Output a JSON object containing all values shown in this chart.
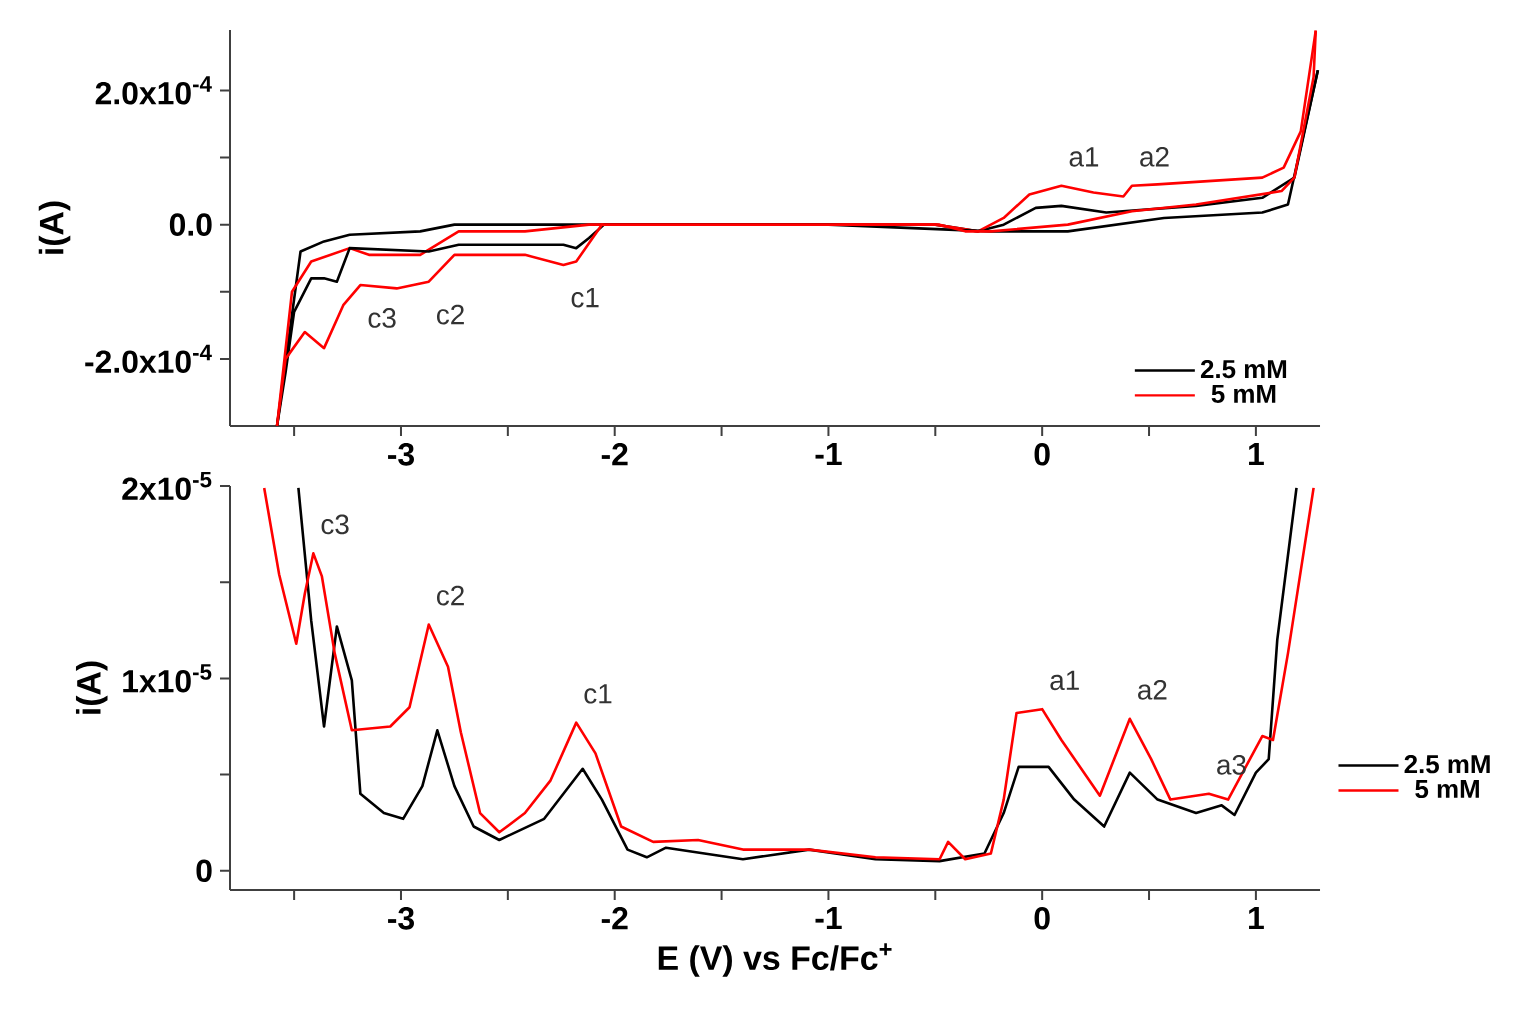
{
  "chart_data": [
    {
      "type": "line",
      "ylabel": "i(A)",
      "legend": "bottom right",
      "xlim": [
        -3.8,
        1.3
      ],
      "ylim": [
        -0.0003,
        0.00029
      ],
      "xticks": [
        {
          "value": -3.5,
          "label": null
        },
        -3,
        {
          "value": -2.5,
          "label": null
        },
        -2,
        {
          "value": -1.5,
          "label": null
        },
        -1,
        {
          "value": -0.5,
          "label": null
        },
        0,
        {
          "value": 0.5,
          "label": null
        },
        1
      ],
      "yticks": [
        {
          "value": -0.0002,
          "label": "-2.0x10$^{-4}$"
        },
        {
          "value": -0.0001,
          "label": null
        },
        {
          "value": 0,
          "label": "0.0"
        },
        {
          "value": 0.0001,
          "label": null
        },
        {
          "value": 0.0002,
          "label": "2.0x10$^{-4}$"
        }
      ],
      "series": [
        {
          "name": "2.5 mM",
          "color": "#000000",
          "x": [
            -3.58,
            -3.47,
            -3.36,
            -3.24,
            -2.91,
            -2.75,
            -2.12,
            -1.5,
            -1.0,
            -0.5,
            -0.3,
            -0.18,
            -0.03,
            0.09,
            0.3,
            0.72,
            1.03,
            1.18,
            1.29
          ],
          "values": [
            -0.0003,
            -4e-05,
            -2.5e-05,
            -1.5e-05,
            -1e-05,
            0,
            0,
            0,
            0,
            0,
            -1e-05,
            0,
            2.5e-05,
            2.8e-05,
            1.8e-05,
            2.8e-05,
            4e-05,
            7e-05,
            0.00023
          ]
        },
        {
          "name": "5 mM",
          "color": "#ff0000",
          "x": [
            -3.58,
            -3.51,
            -3.42,
            -3.24,
            -3.15,
            -2.91,
            -2.73,
            -2.42,
            -2.12,
            -1.5,
            -1.0,
            -0.5,
            -0.3,
            -0.18,
            -0.06,
            0.09,
            0.24,
            0.38,
            0.42,
            0.54,
            1.03,
            1.13,
            1.21,
            1.28
          ],
          "values": [
            -0.0003,
            -0.0001,
            -5.5e-05,
            -3.5e-05,
            -4.5e-05,
            -4.5e-05,
            -1e-05,
            -1e-05,
            0,
            0,
            0,
            0,
            -1e-05,
            1e-05,
            4.5e-05,
            5.8e-05,
            4.8e-05,
            4.2e-05,
            5.8e-05,
            6e-05,
            7e-05,
            8.5e-05,
            0.000139,
            0.000289
          ]
        },
        {
          "color": "#000000",
          "x": [
            1.29,
            1.15,
            1.03,
            0.57,
            0.12,
            -0.24,
            -1.0,
            -1.5,
            -2.05,
            -2.12,
            -2.18,
            -2.24,
            -2.73,
            -2.87,
            -3.24,
            -3.3,
            -3.36,
            -3.42,
            -3.5,
            -3.54,
            -3.58
          ],
          "values": [
            0.00023,
            3e-05,
            1.8e-05,
            1e-05,
            -1e-05,
            -1e-05,
            0,
            0,
            0,
            -2e-05,
            -3.5e-05,
            -3e-05,
            -3e-05,
            -4e-05,
            -3.5e-05,
            -8.5e-05,
            -8e-05,
            -8e-05,
            -0.00013,
            -0.00022,
            -0.0003
          ]
        },
        {
          "color": "#ff0000",
          "x": [
            1.28,
            1.27,
            1.18,
            1.12,
            0.72,
            0.42,
            0.12,
            -0.24,
            -0.36,
            -0.48,
            -1.0,
            -1.5,
            -1.94,
            -2.06,
            -2.18,
            -2.24,
            -2.42,
            -2.75,
            -2.87,
            -3.02,
            -3.19,
            -3.27,
            -3.36,
            -3.45,
            -3.54,
            -3.58
          ],
          "values": [
            0.000289,
            0.00022,
            7e-05,
            5e-05,
            3e-05,
            2e-05,
            0,
            -1e-05,
            -1e-05,
            0,
            0,
            0,
            0,
            0,
            -5.5e-05,
            -6e-05,
            -4.5e-05,
            -4.5e-05,
            -8.5e-05,
            -9.5e-05,
            -9e-05,
            -0.00012,
            -0.000184,
            -0.00016,
            -0.0002,
            -0.0003
          ]
        }
      ],
      "annotations": [
        {
          "text": "c3",
          "x": -3.19,
          "y": -9e-05
        },
        {
          "text": "c2",
          "x": -2.87,
          "y": -8.5e-05
        },
        {
          "text": "c1",
          "x": -2.24,
          "y": -6e-05
        },
        {
          "text": "a1",
          "x": 0.09,
          "y": 5.8e-05
        },
        {
          "text": "a2",
          "x": 0.42,
          "y": 5.8e-05
        }
      ]
    },
    {
      "type": "line",
      "ylabel": "i(A)",
      "xlabel": "E (V) vs Fc/Fc$^{+}$",
      "legend": "right",
      "xlim": [
        -3.8,
        1.3
      ],
      "ylim": [
        -1e-06,
        2e-05
      ],
      "xticks": [
        {
          "value": -3.5,
          "label": null
        },
        -3,
        {
          "value": -2.5,
          "label": null
        },
        -2,
        {
          "value": -1.5,
          "label": null
        },
        -1,
        {
          "value": -0.5,
          "label": null
        },
        0,
        {
          "value": 0.5,
          "label": null
        },
        1
      ],
      "yticks": [
        0,
        {
          "value": 5e-06,
          "label": null
        },
        {
          "value": 1e-05,
          "label": "1x10$^{-5}$"
        },
        {
          "value": 1.5e-05,
          "label": null
        },
        {
          "value": 2e-05,
          "label": "2x10$^{-5}$"
        }
      ],
      "series": [
        {
          "name": "2.5 mM",
          "color": "#000000",
          "x": [
            -3.48,
            -3.42,
            -3.36,
            -3.3,
            -3.23,
            -3.19,
            -3.08,
            -2.99,
            -2.9,
            -2.83,
            -2.75,
            -2.66,
            -2.54,
            -2.33,
            -2.15,
            -2.06,
            -1.94,
            -1.85,
            -1.76,
            -1.4,
            -1.09,
            -0.78,
            -0.48,
            -0.27,
            -0.18,
            -0.11,
            0.03,
            0.15,
            0.29,
            0.41,
            0.54,
            0.72,
            0.84,
            0.9,
            1.0,
            1.06,
            1.1,
            1.19
          ],
          "values": [
            1.99e-05,
            1.3e-05,
            7.5e-06,
            1.27e-05,
            9.9e-06,
            4e-06,
            3e-06,
            2.7e-06,
            4.4e-06,
            7.3e-06,
            4.4e-06,
            2.3e-06,
            1.6e-06,
            2.7e-06,
            5.3e-06,
            3.7e-06,
            1.1e-06,
            7e-07,
            1.2e-06,
            6e-07,
            1.1e-06,
            6e-07,
            5e-07,
            9e-07,
            3e-06,
            5.4e-06,
            5.4e-06,
            3.7e-06,
            2.3e-06,
            5.1e-06,
            3.7e-06,
            3e-06,
            3.4e-06,
            2.9e-06,
            5.1e-06,
            5.8e-06,
            1.2e-05,
            1.99e-05
          ]
        },
        {
          "name": "5 mM",
          "color": "#ff0000",
          "x": [
            -3.64,
            -3.57,
            -3.49,
            -3.45,
            -3.41,
            -3.37,
            -3.31,
            -3.23,
            -3.05,
            -2.96,
            -2.87,
            -2.78,
            -2.72,
            -2.63,
            -2.54,
            -2.42,
            -2.3,
            -2.18,
            -2.09,
            -1.97,
            -1.82,
            -1.61,
            -1.4,
            -1.09,
            -0.78,
            -0.48,
            -0.44,
            -0.36,
            -0.24,
            -0.18,
            -0.12,
            0,
            0.09,
            0.27,
            0.41,
            0.51,
            0.6,
            0.78,
            0.87,
            1.03,
            1.08,
            1.15,
            1.27
          ],
          "values": [
            1.99e-05,
            1.54e-05,
            1.18e-05,
            1.44e-05,
            1.65e-05,
            1.53e-05,
            1.13e-05,
            7.3e-06,
            7.5e-06,
            8.5e-06,
            1.28e-05,
            1.06e-05,
            7.2e-06,
            3e-06,
            2e-06,
            3e-06,
            4.7e-06,
            7.7e-06,
            6.1e-06,
            2.3e-06,
            1.5e-06,
            1.6e-06,
            1.1e-06,
            1.1e-06,
            7e-07,
            6e-07,
            1.5e-06,
            6e-07,
            9e-07,
            3.7e-06,
            8.2e-06,
            8.4e-06,
            6.8e-06,
            3.9e-06,
            7.9e-06,
            5.8e-06,
            3.7e-06,
            4e-06,
            3.7e-06,
            7e-06,
            6.8e-06,
            1.13e-05,
            1.99e-05
          ]
        }
      ],
      "annotations": [
        {
          "text": "c3",
          "x": -3.41,
          "y": 1.65e-05
        },
        {
          "text": "c2",
          "x": -2.87,
          "y": 1.28e-05
        },
        {
          "text": "c1",
          "x": -2.18,
          "y": 7.7e-06
        },
        {
          "text": "a1",
          "x": 0,
          "y": 8.4e-06
        },
        {
          "text": "a2",
          "x": 0.41,
          "y": 7.9e-06
        },
        {
          "text": "a3",
          "x": 0.78,
          "y": 4e-06
        }
      ]
    }
  ]
}
